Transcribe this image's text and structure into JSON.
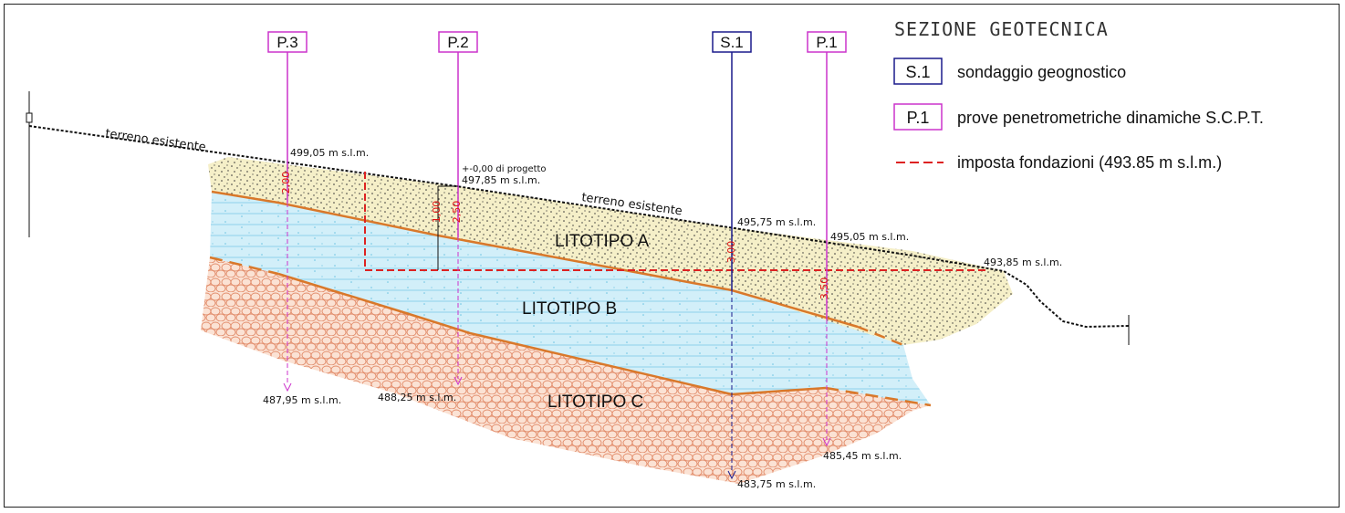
{
  "legend": {
    "title": "SEZIONE GEOTECNICA",
    "items": [
      {
        "code": "S.1",
        "text": "sondaggio geognostico",
        "color": "#1a1a8c"
      },
      {
        "code": "P.1",
        "text": "prove penetrometriche dinamiche S.C.P.T.",
        "color": "#cc33cc"
      },
      {
        "code": "",
        "text": "imposta fondazioni (493.85 m s.l.m.)",
        "color": "#dd2222"
      }
    ]
  },
  "terrain": {
    "label_left": "terreno esistente",
    "label_right": "terreno esistente"
  },
  "layers": {
    "a": "LITOTIPO A",
    "b": "LITOTIPO B",
    "c": "LITOTIPO C"
  },
  "probes": {
    "p3": {
      "code": "P.3",
      "top": "499,05 m s.l.m.",
      "bottom": "487,95 m s.l.m.",
      "depth": "2,00"
    },
    "p2": {
      "code": "P.2",
      "top": "497,85 m s.l.m.",
      "bottom": "488,25 m s.l.m.",
      "depth": "2,50",
      "depth2": "1,00",
      "project": "+-0,00 di progetto"
    },
    "s1": {
      "code": "S.1",
      "top": "495,75 m s.l.m.",
      "bottom": "483,75 m s.l.m.",
      "depth": "3,00"
    },
    "p1": {
      "code": "P.1",
      "top": "495,05 m s.l.m.",
      "bottom": "485,45 m s.l.m.",
      "depth": "3,50"
    }
  },
  "foundation_level": "493,85 m s.l.m.",
  "colors": {
    "probe_p": "#cc33cc",
    "probe_s": "#1a1a8c",
    "foundation": "#dd2222",
    "boundary": "#d9782a",
    "litho_a": "#f4edc4",
    "litho_b": "#cdeef8",
    "litho_c": "#f6c6ad"
  }
}
